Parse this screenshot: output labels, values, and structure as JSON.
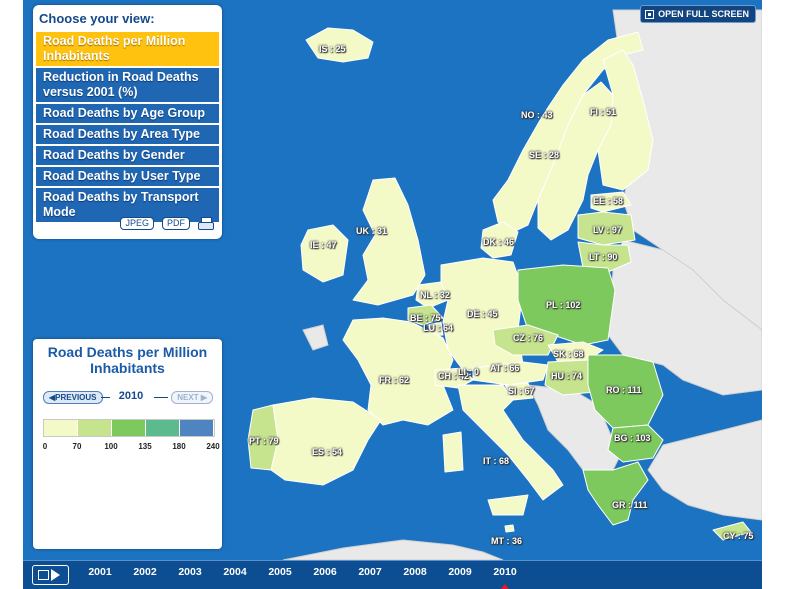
{
  "open_full_screen_label": "OPEN FULL SCREEN",
  "view_panel": {
    "title": "Choose your view:",
    "items": [
      {
        "label": "Road Deaths per Million Inhabitants",
        "active": true
      },
      {
        "label": "Reduction in Road Deaths versus 2001 (%)",
        "active": false
      },
      {
        "label": "Road Deaths by Age Group",
        "active": false
      },
      {
        "label": "Road Deaths by Area Type",
        "active": false
      },
      {
        "label": "Road Deaths by Gender",
        "active": false
      },
      {
        "label": "Road Deaths by User Type",
        "active": false
      },
      {
        "label": "Road Deaths by Transport Mode",
        "active": false
      }
    ],
    "jpeg_label": "JPEG",
    "pdf_label": "PDF"
  },
  "legend": {
    "title": "Road Deaths per Million Inhabitants",
    "previous_label": "PREVIOUS",
    "next_label": "NEXT",
    "year": "2010",
    "ticks": [
      "0",
      "70",
      "100",
      "135",
      "180",
      "240"
    ],
    "colors": [
      "#f4f9c8",
      "#c6e48e",
      "#7dc95e",
      "#5cbb8e",
      "#4e85c0"
    ]
  },
  "colors": {
    "sea": "#1c73c2",
    "neighbor": "#e9e9e9",
    "accent": "#ffc20e",
    "panel_blue": "#1f66b3"
  },
  "countries": [
    {
      "code": "IS",
      "value": 25
    },
    {
      "code": "NO",
      "value": 43
    },
    {
      "code": "FI",
      "value": 51
    },
    {
      "code": "SE",
      "value": 28
    },
    {
      "code": "EE",
      "value": 58
    },
    {
      "code": "LV",
      "value": 97
    },
    {
      "code": "LT",
      "value": 90
    },
    {
      "code": "DK",
      "value": 46
    },
    {
      "code": "UK",
      "value": 31
    },
    {
      "code": "IE",
      "value": 47
    },
    {
      "code": "NL",
      "value": 32
    },
    {
      "code": "BE",
      "value": 75
    },
    {
      "code": "LU",
      "value": 64
    },
    {
      "code": "DE",
      "value": 45
    },
    {
      "code": "PL",
      "value": 102
    },
    {
      "code": "CZ",
      "value": 76
    },
    {
      "code": "SK",
      "value": 68
    },
    {
      "code": "FR",
      "value": 62
    },
    {
      "code": "CH",
      "value": 42
    },
    {
      "code": "LI",
      "value": 0
    },
    {
      "code": "AT",
      "value": 66
    },
    {
      "code": "HU",
      "value": 74
    },
    {
      "code": "SI",
      "value": 67
    },
    {
      "code": "RO",
      "value": 111
    },
    {
      "code": "BG",
      "value": 103
    },
    {
      "code": "PT",
      "value": 79
    },
    {
      "code": "ES",
      "value": 54
    },
    {
      "code": "IT",
      "value": 68
    },
    {
      "code": "GR",
      "value": 111
    },
    {
      "code": "MT",
      "value": 36
    },
    {
      "code": "CY",
      "value": 75
    }
  ],
  "timeline": {
    "years": [
      "2001",
      "2002",
      "2003",
      "2004",
      "2005",
      "2006",
      "2007",
      "2008",
      "2009",
      "2010"
    ],
    "selected": "2010"
  }
}
